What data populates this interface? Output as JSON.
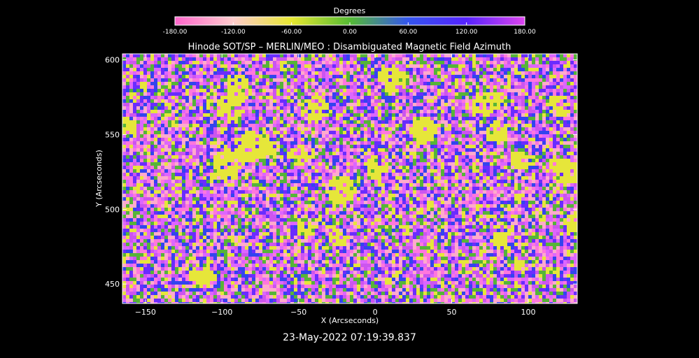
{
  "chart_data": {
    "type": "heatmap",
    "title": "Hinode SOT/SP – MERLIN/MEO : Disambiguated Magnetic Field Azimuth",
    "xlabel": "X (Arcseconds)",
    "ylabel": "Y (Arcseconds)",
    "xlim": [
      -165,
      132
    ],
    "ylim": [
      437,
      604
    ],
    "x_ticks": [
      -150,
      -100,
      -50,
      0,
      50,
      100
    ],
    "y_ticks": [
      450,
      500,
      550,
      600
    ],
    "colorbar": {
      "label": "Degrees",
      "range": [
        -180,
        180
      ],
      "tick_values": [
        -180,
        -120,
        -60,
        0,
        60,
        120,
        180
      ],
      "tick_labels": [
        "-180.00",
        "-120.00",
        "-60.00",
        "0.00",
        "60.00",
        "120.00",
        "180.00"
      ],
      "colormap": [
        "#ff66cc",
        "#ffcccc",
        "#e8e830",
        "#55bb33",
        "#3355ee",
        "#5522ff",
        "#dd44ee"
      ]
    },
    "timestamp": "23-May-2022 07:19:39.837"
  }
}
